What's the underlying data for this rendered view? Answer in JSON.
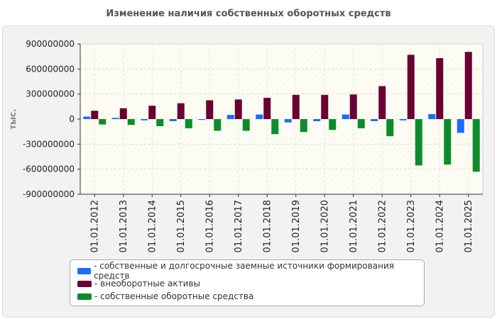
{
  "chart_data": {
    "type": "bar",
    "title": "Изменение наличия собственных оборотных средств",
    "ylabel": "тыс.",
    "xlabel": "",
    "ylim": [
      -900000000,
      900000000
    ],
    "yticks": [
      900000000,
      600000000,
      300000000,
      0,
      -300000000,
      -600000000,
      -900000000
    ],
    "ytick_labels": [
      "900000000",
      "600000000",
      "300000000",
      "0",
      "-300000000",
      "-600000000",
      "-900000000"
    ],
    "categories": [
      "01.01.2012",
      "01.01.2013",
      "01.01.2014",
      "01.01.2015",
      "01.01.2016",
      "01.01.2017",
      "01.01.2018",
      "01.01.2019",
      "01.01.2020",
      "01.01.2021",
      "01.01.2022",
      "01.01.2023",
      "01.01.2024",
      "01.01.2025"
    ],
    "series": [
      {
        "name": "собственные и долгосрочные заемные источники формирования средств",
        "color": "#1a6ef5",
        "values": [
          30000000,
          15000000,
          -15000000,
          -25000000,
          -10000000,
          50000000,
          55000000,
          -40000000,
          -25000000,
          55000000,
          -25000000,
          -15000000,
          60000000,
          -165000000
        ]
      },
      {
        "name": "внеоборотные активы",
        "color": "#6b0034",
        "values": [
          100000000,
          130000000,
          160000000,
          190000000,
          225000000,
          235000000,
          255000000,
          290000000,
          290000000,
          295000000,
          395000000,
          770000000,
          730000000,
          805000000
        ]
      },
      {
        "name": "собственные оборотные средства",
        "color": "#0d8c2a",
        "values": [
          -65000000,
          -70000000,
          -85000000,
          -110000000,
          -140000000,
          -140000000,
          -180000000,
          -155000000,
          -130000000,
          -110000000,
          -205000000,
          -555000000,
          -545000000,
          -630000000
        ]
      }
    ],
    "legend_position": "bottom",
    "grid": true
  }
}
